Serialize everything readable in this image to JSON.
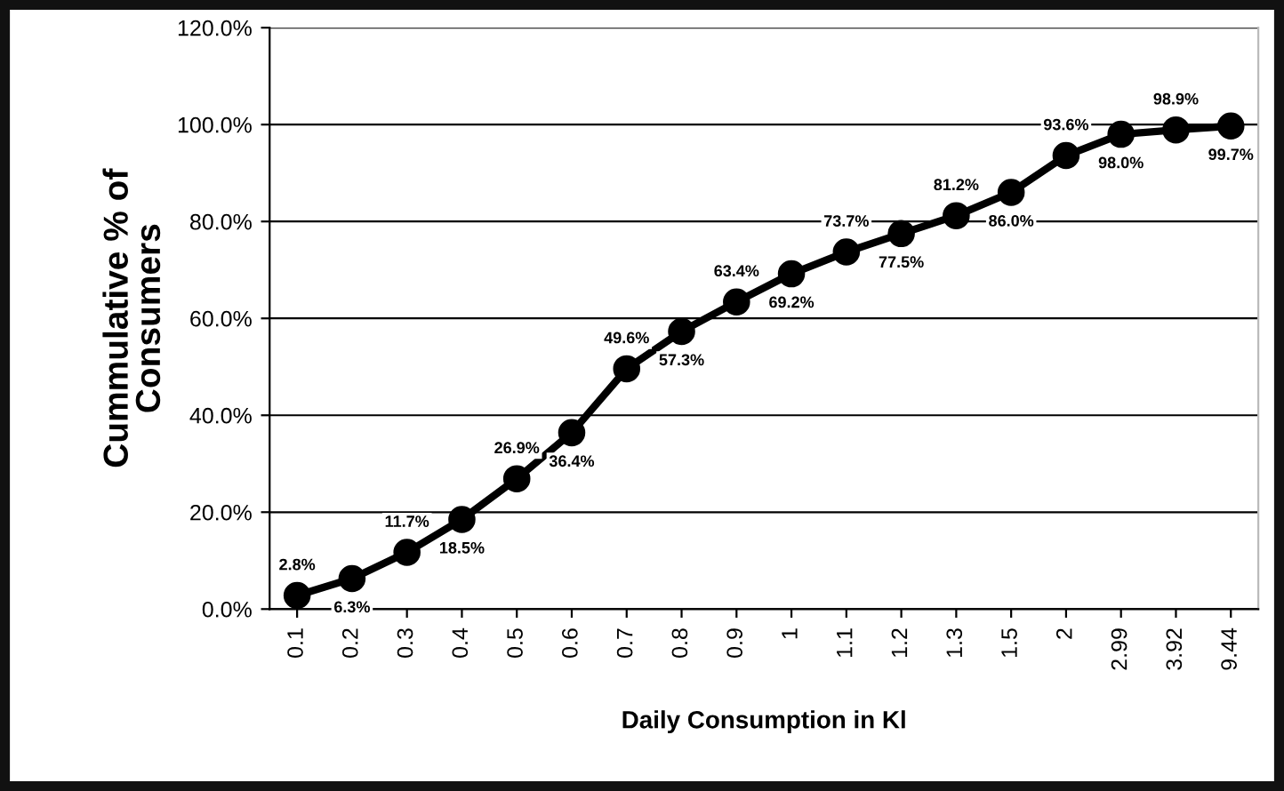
{
  "chart_data": {
    "type": "line",
    "xlabel": "Daily Consumption in Kl",
    "ylabel": "Cummulative % of\nConsumers",
    "categories": [
      "0.1",
      "0.2",
      "0.3",
      "0.4",
      "0.5",
      "0.6",
      "0.7",
      "0.8",
      "0.9",
      "1",
      "1.1",
      "1.2",
      "1.3",
      "1.5",
      "2",
      "2.99",
      "3.92",
      "9.44"
    ],
    "series": [
      {
        "color": "#000000",
        "values": [
          2.8,
          6.3,
          11.7,
          18.5,
          26.9,
          36.4,
          49.6,
          57.3,
          63.4,
          69.2,
          73.7,
          77.5,
          81.2,
          86.0,
          93.6,
          98.0,
          98.9,
          99.7
        ],
        "value_labels": [
          "2.8%",
          "6.3%",
          "11.7%",
          "18.5%",
          "26.9%",
          "36.4%",
          "49.6%",
          "57.3%",
          "63.4%",
          "69.2%",
          "73.7%",
          "77.5%",
          "81.2%",
          "86.0%",
          "93.6%",
          "98.0%",
          "98.9%",
          "99.7%"
        ]
      }
    ],
    "ylim": [
      0,
      120
    ],
    "yticks": [
      {
        "value": 0,
        "label": "0.0%"
      },
      {
        "value": 20,
        "label": "20.0%"
      },
      {
        "value": 40,
        "label": "40.0%"
      },
      {
        "value": 60,
        "label": "60.0%"
      },
      {
        "value": 80,
        "label": "80.0%"
      },
      {
        "value": 100,
        "label": "100.0%"
      },
      {
        "value": 120,
        "label": "120.0%"
      }
    ],
    "grid": "y",
    "marker": "circle",
    "line_style": "solid",
    "legend": false
  }
}
